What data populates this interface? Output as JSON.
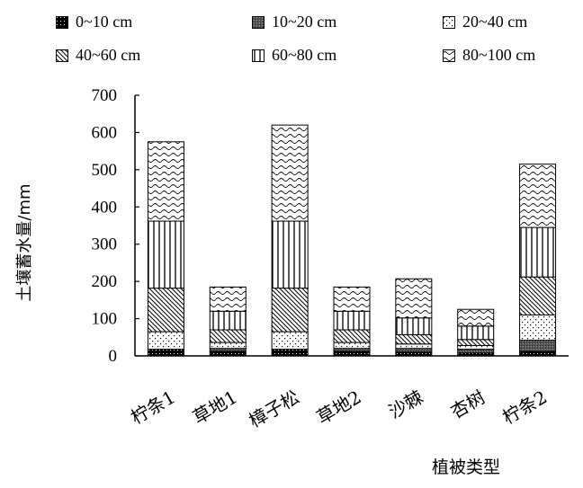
{
  "chart_data": {
    "type": "bar",
    "stacked": true,
    "categories": [
      "柠条1",
      "草地1",
      "樟子松",
      "草地2",
      "沙棘",
      "杏树",
      "柠条2"
    ],
    "series": [
      {
        "name": "0~10 cm",
        "pattern": "solid-black",
        "values": [
          18,
          12,
          18,
          12,
          10,
          8,
          12
        ]
      },
      {
        "name": "10~20 cm",
        "pattern": "dark-grey",
        "values": [
          0,
          8,
          0,
          8,
          10,
          10,
          30
        ]
      },
      {
        "name": "20~40 cm",
        "pattern": "dots",
        "values": [
          47,
          16,
          47,
          16,
          12,
          10,
          68
        ]
      },
      {
        "name": "40~60 cm",
        "pattern": "diagonal",
        "values": [
          117,
          34,
          117,
          34,
          25,
          16,
          102
        ]
      },
      {
        "name": "60~80 cm",
        "pattern": "vertical",
        "values": [
          180,
          50,
          180,
          50,
          45,
          36,
          133
        ]
      },
      {
        "name": "80~100 cm",
        "pattern": "waves",
        "values": [
          213,
          65,
          258,
          65,
          105,
          45,
          170
        ]
      }
    ],
    "ylabel": "土壤蓄水量/mm",
    "xlabel": "植被类型",
    "ylim": [
      0,
      700
    ],
    "yticks": [
      0,
      100,
      200,
      300,
      400,
      500,
      600,
      700
    ],
    "legend_position": "top",
    "grid": false
  }
}
